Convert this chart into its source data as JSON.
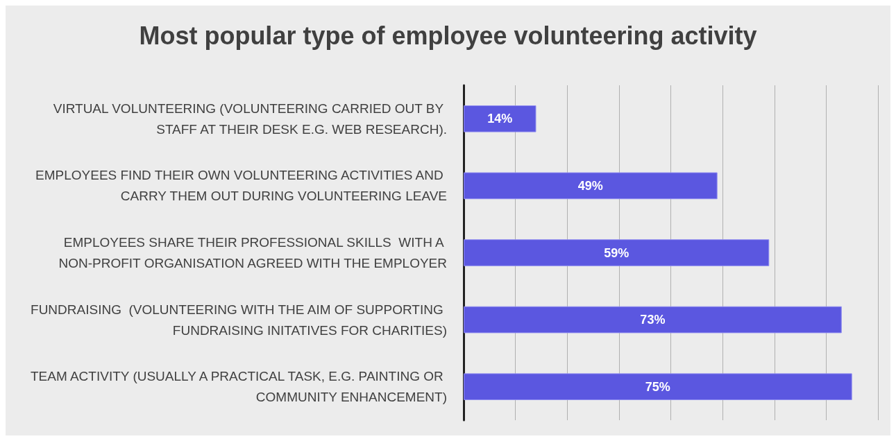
{
  "chart_data": {
    "type": "bar",
    "orientation": "horizontal",
    "title": "Most popular type of employee volunteering activity",
    "categories": [
      "VIRTUAL VOLUNTEERING (VOLUNTEERING CARRIED OUT BY STAFF AT THEIR DESK E.G. WEB RESEARCH).",
      "EMPLOYEES FIND THEIR OWN VOLUNTEERING ACTIVITIES AND CARRY THEM OUT DURING VOLUNTEERING LEAVE",
      "EMPLOYEES SHARE THEIR PROFESSIONAL SKILLS  WITH A NON-PROFIT ORGANISATION AGREED WITH THE EMPLOYER",
      "FUNDRAISING  (VOLUNTEERING WITH THE AIM OF SUPPORTING FUNDRAISING INITATIVES FOR CHARITIES)",
      "TEAM ACTIVITY (USUALLY A PRACTICAL TASK, E.G. PAINTING OR COMMUNITY ENHANCEMENT)"
    ],
    "values": [
      14,
      49,
      59,
      73,
      75
    ],
    "value_labels": [
      "14%",
      "49%",
      "59%",
      "73%",
      "75%"
    ],
    "color": "#5b57e0",
    "xlim": [
      0,
      80
    ],
    "xticks": [
      {
        "value": 0,
        "label": null
      },
      {
        "value": 10,
        "label": null
      },
      {
        "value": 20,
        "label": null
      },
      {
        "value": 30,
        "label": null
      },
      {
        "value": 40,
        "label": null
      },
      {
        "value": 50,
        "label": null
      },
      {
        "value": 60,
        "label": null
      },
      {
        "value": 70,
        "label": null
      },
      {
        "value": 80,
        "label": null
      }
    ],
    "tick_labels": "y",
    "grid": "x"
  }
}
